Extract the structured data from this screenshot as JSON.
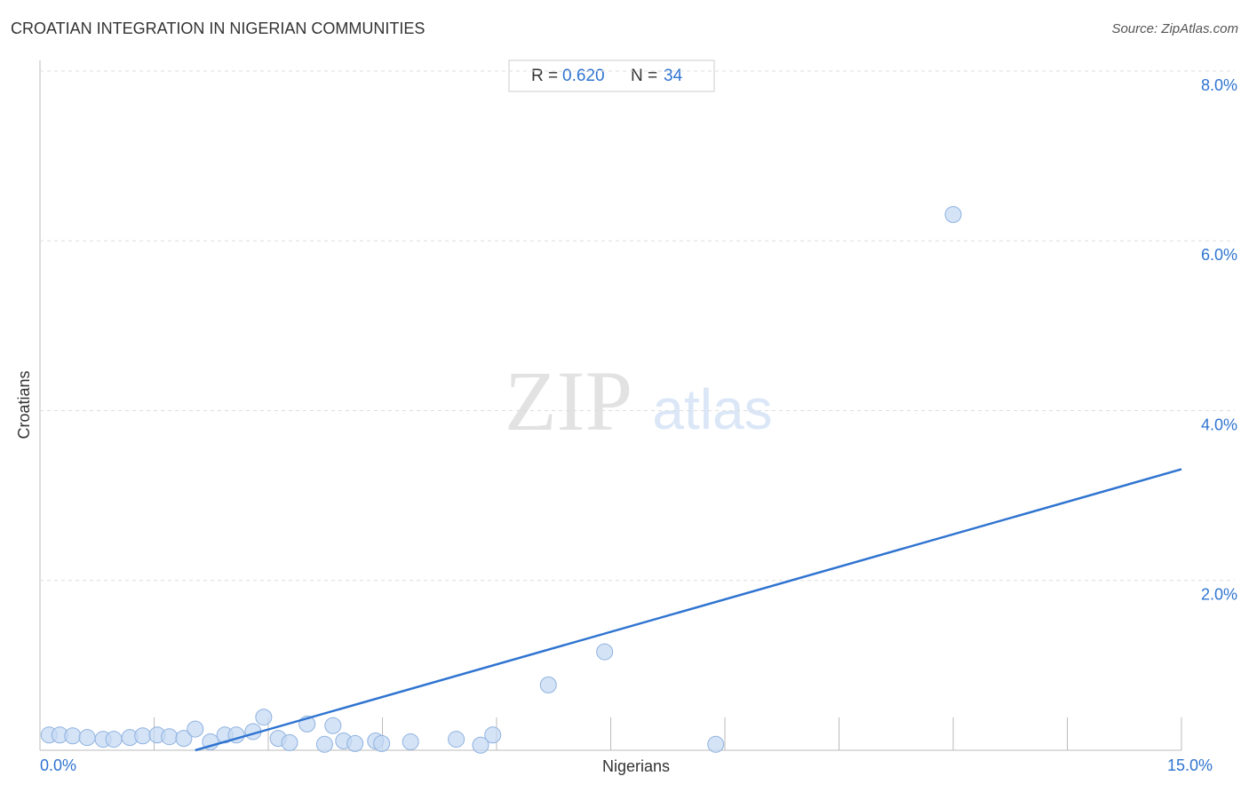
{
  "chart_data": {
    "type": "scatter",
    "title": "CROATIAN INTEGRATION IN NIGERIAN COMMUNITIES",
    "source": "Source: ZipAtlas.com",
    "x_label": "Nigerians",
    "y_label": "Croatians",
    "watermark": [
      "ZIP",
      "atlas"
    ],
    "stats": {
      "r_label": "R =",
      "r_value": "0.620",
      "n_label": "N =",
      "n_value": 34
    },
    "color": "#c5d9f3",
    "line_color": "#2f74d0",
    "xlim": [
      0,
      15
    ],
    "ylim": [
      0,
      8
    ],
    "xticks": [
      {
        "value": 0,
        "label": "0.0%"
      },
      1.5,
      3,
      4.5,
      6,
      7.5,
      9,
      10.5,
      12,
      13.5,
      {
        "value": 15,
        "label": "15.0%"
      }
    ],
    "yticks": [
      {
        "value": 2,
        "label": "2.0%"
      },
      {
        "value": 4,
        "label": "4.0%"
      },
      {
        "value": 6,
        "label": "6.0%"
      },
      {
        "value": 8,
        "label": "8.0%"
      }
    ],
    "grid": true,
    "x": [
      0.12,
      0.26,
      0.43,
      0.62,
      0.83,
      0.97,
      1.18,
      1.35,
      1.54,
      1.7,
      1.89,
      2.04,
      2.24,
      2.43,
      2.58,
      2.8,
      2.94,
      3.13,
      3.28,
      3.51,
      3.74,
      3.85,
      3.99,
      4.14,
      4.41,
      4.49,
      4.87,
      5.47,
      5.79,
      5.95,
      6.68,
      7.42,
      8.88,
      12.0
    ],
    "y": [
      0.18,
      0.18,
      0.17,
      0.15,
      0.13,
      0.13,
      0.15,
      0.17,
      0.18,
      0.16,
      0.14,
      0.25,
      0.1,
      0.18,
      0.18,
      0.22,
      0.39,
      0.14,
      0.09,
      0.31,
      0.07,
      0.29,
      0.11,
      0.08,
      0.11,
      0.08,
      0.1,
      0.13,
      0.06,
      0.18,
      0.77,
      1.16,
      0.07,
      6.31
    ],
    "trendline": {
      "x": [
        2.04,
        15
      ],
      "y": [
        0,
        3.31
      ]
    }
  }
}
